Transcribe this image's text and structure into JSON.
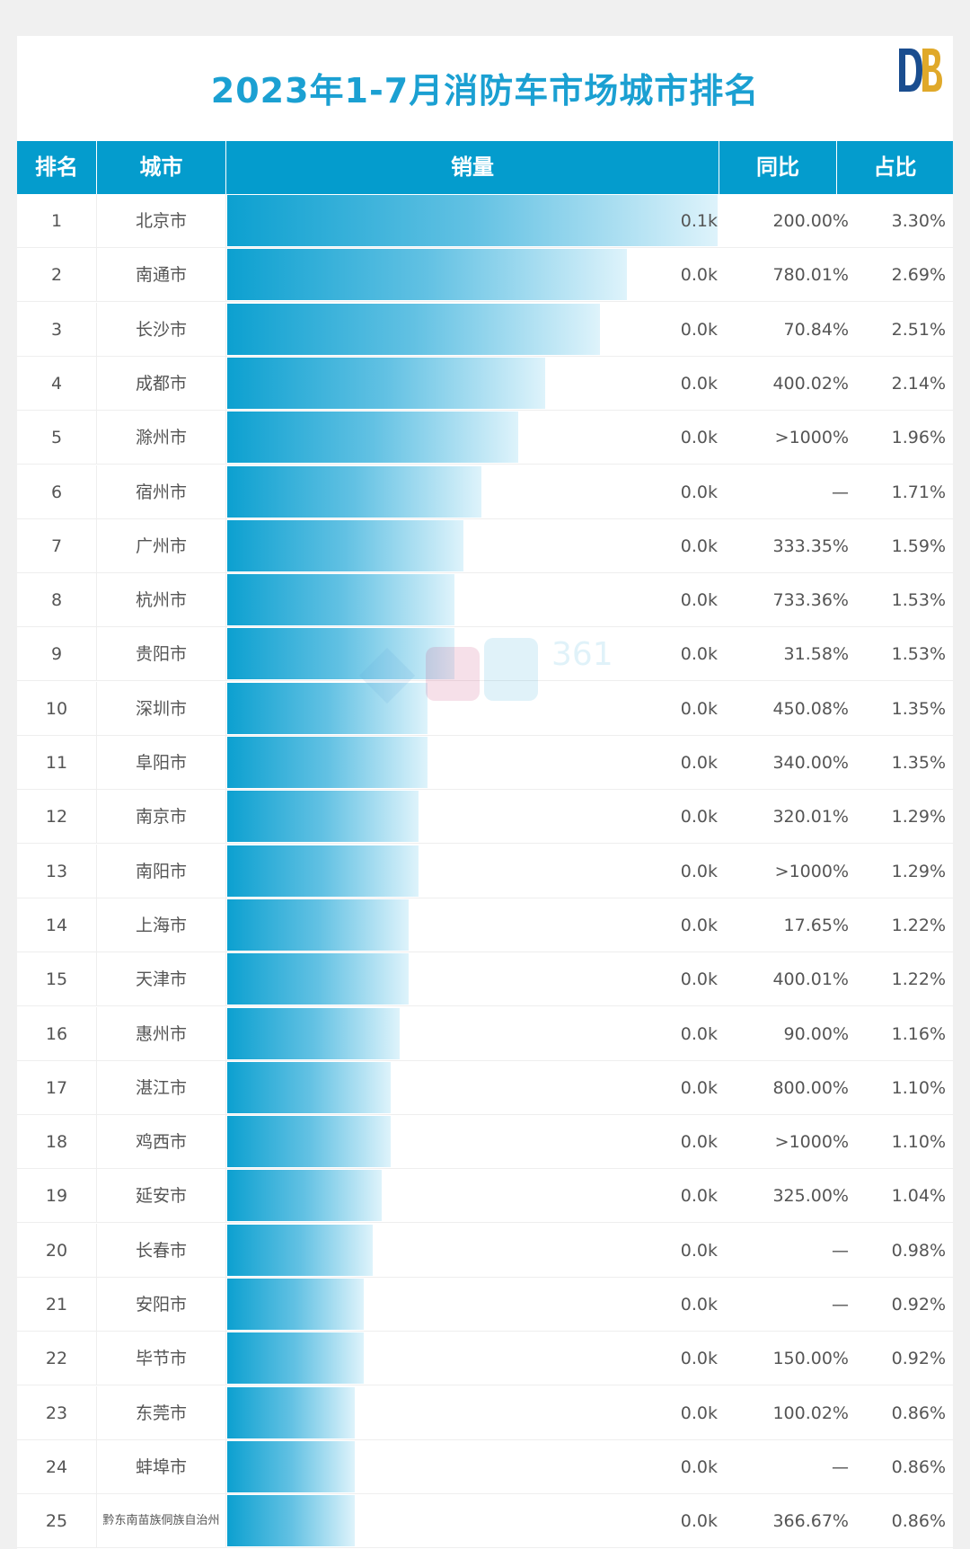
{
  "title": "2023年1-7月消防车市场城市排名",
  "headers": {
    "rank": "排名",
    "city": "城市",
    "sales": "销量",
    "yoy": "同比",
    "share": "占比"
  },
  "colors": {
    "accent": "#049ccd",
    "title": "#1ba0d2",
    "bar_start": "#0ca0d0",
    "bar_end": "#def3fb"
  },
  "chart_data": {
    "type": "bar",
    "orientation": "horizontal",
    "title": "2023年1-7月消防车市场城市排名",
    "value_axis_label": "销量",
    "rows": [
      {
        "rank": "1",
        "city": "北京市",
        "value_label": "0.1k",
        "yoy": "200.00%",
        "share": "3.30%",
        "share_value": 3.3
      },
      {
        "rank": "2",
        "city": "南通市",
        "value_label": "0.0k",
        "yoy": "780.01%",
        "share": "2.69%",
        "share_value": 2.69
      },
      {
        "rank": "3",
        "city": "长沙市",
        "value_label": "0.0k",
        "yoy": "70.84%",
        "share": "2.51%",
        "share_value": 2.51
      },
      {
        "rank": "4",
        "city": "成都市",
        "value_label": "0.0k",
        "yoy": "400.02%",
        "share": "2.14%",
        "share_value": 2.14
      },
      {
        "rank": "5",
        "city": "滁州市",
        "value_label": "0.0k",
        "yoy": ">1000%",
        "share": "1.96%",
        "share_value": 1.96
      },
      {
        "rank": "6",
        "city": "宿州市",
        "value_label": "0.0k",
        "yoy": "—",
        "share": "1.71%",
        "share_value": 1.71
      },
      {
        "rank": "7",
        "city": "广州市",
        "value_label": "0.0k",
        "yoy": "333.35%",
        "share": "1.59%",
        "share_value": 1.59
      },
      {
        "rank": "8",
        "city": "杭州市",
        "value_label": "0.0k",
        "yoy": "733.36%",
        "share": "1.53%",
        "share_value": 1.53
      },
      {
        "rank": "9",
        "city": "贵阳市",
        "value_label": "0.0k",
        "yoy": "31.58%",
        "share": "1.53%",
        "share_value": 1.53
      },
      {
        "rank": "10",
        "city": "深圳市",
        "value_label": "0.0k",
        "yoy": "450.08%",
        "share": "1.35%",
        "share_value": 1.35
      },
      {
        "rank": "11",
        "city": "阜阳市",
        "value_label": "0.0k",
        "yoy": "340.00%",
        "share": "1.35%",
        "share_value": 1.35
      },
      {
        "rank": "12",
        "city": "南京市",
        "value_label": "0.0k",
        "yoy": "320.01%",
        "share": "1.29%",
        "share_value": 1.29
      },
      {
        "rank": "13",
        "city": "南阳市",
        "value_label": "0.0k",
        "yoy": ">1000%",
        "share": "1.29%",
        "share_value": 1.29
      },
      {
        "rank": "14",
        "city": "上海市",
        "value_label": "0.0k",
        "yoy": "17.65%",
        "share": "1.22%",
        "share_value": 1.22
      },
      {
        "rank": "15",
        "city": "天津市",
        "value_label": "0.0k",
        "yoy": "400.01%",
        "share": "1.22%",
        "share_value": 1.22
      },
      {
        "rank": "16",
        "city": "惠州市",
        "value_label": "0.0k",
        "yoy": "90.00%",
        "share": "1.16%",
        "share_value": 1.16
      },
      {
        "rank": "17",
        "city": "湛江市",
        "value_label": "0.0k",
        "yoy": "800.00%",
        "share": "1.10%",
        "share_value": 1.1
      },
      {
        "rank": "18",
        "city": "鸡西市",
        "value_label": "0.0k",
        "yoy": ">1000%",
        "share": "1.10%",
        "share_value": 1.1
      },
      {
        "rank": "19",
        "city": "延安市",
        "value_label": "0.0k",
        "yoy": "325.00%",
        "share": "1.04%",
        "share_value": 1.04
      },
      {
        "rank": "20",
        "city": "长春市",
        "value_label": "0.0k",
        "yoy": "—",
        "share": "0.98%",
        "share_value": 0.98
      },
      {
        "rank": "21",
        "city": "安阳市",
        "value_label": "0.0k",
        "yoy": "—",
        "share": "0.92%",
        "share_value": 0.92
      },
      {
        "rank": "22",
        "city": "毕节市",
        "value_label": "0.0k",
        "yoy": "150.00%",
        "share": "0.92%",
        "share_value": 0.92
      },
      {
        "rank": "23",
        "city": "东莞市",
        "value_label": "0.0k",
        "yoy": "100.02%",
        "share": "0.86%",
        "share_value": 0.86
      },
      {
        "rank": "24",
        "city": "蚌埠市",
        "value_label": "0.0k",
        "yoy": "—",
        "share": "0.86%",
        "share_value": 0.86
      },
      {
        "rank": "25",
        "city": "黔东南苗族侗族自治州",
        "value_label": "0.0k",
        "yoy": "366.67%",
        "share": "0.86%",
        "share_value": 0.86
      }
    ]
  }
}
